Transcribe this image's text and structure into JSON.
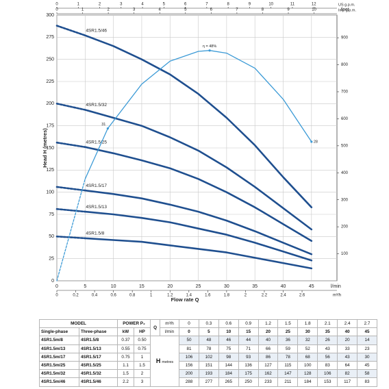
{
  "chart_data": {
    "type": "line",
    "xlabel": "Flow rate Q",
    "xunit": "l/min",
    "ylabel": "Head H (metres)",
    "xlim": [
      0,
      49.5
    ],
    "xticks": [
      0,
      5,
      10,
      15,
      20,
      25,
      30,
      35,
      40,
      45
    ],
    "ylim": [
      0,
      300
    ],
    "yticks": [
      0,
      25,
      50,
      75,
      100,
      125,
      150,
      175,
      200,
      225,
      250,
      275,
      300
    ],
    "grid": true,
    "dashed_first_segment": true,
    "x": [
      0,
      5,
      10,
      15,
      20,
      25,
      30,
      35,
      40,
      45
    ],
    "series": [
      {
        "name": "4SR1.5/46",
        "color": "#1f4f8f",
        "values": [
          288,
          277,
          265,
          250,
          233,
          211,
          184,
          153,
          117,
          83
        ]
      },
      {
        "name": "4SR1.5/32",
        "color": "#1f4f8f",
        "values": [
          200,
          193,
          184,
          175,
          162,
          147,
          128,
          106,
          82,
          58
        ]
      },
      {
        "name": "4SR1.5/25",
        "color": "#1f4f8f",
        "values": [
          156,
          151,
          144,
          136,
          127,
          115,
          100,
          83,
          64,
          45
        ]
      },
      {
        "name": "4SR1.5/17",
        "color": "#1f4f8f",
        "values": [
          106,
          102,
          98,
          93,
          86,
          78,
          68,
          56,
          43,
          30
        ]
      },
      {
        "name": "4SR1.5/13",
        "color": "#1f4f8f",
        "values": [
          81,
          78,
          75,
          71,
          66,
          59,
          52,
          43,
          33,
          23
        ]
      },
      {
        "name": "4SR1.5/8",
        "color": "#1f4f8f",
        "values": [
          50,
          48,
          46,
          44,
          40,
          36,
          32,
          26,
          20,
          14
        ]
      }
    ],
    "efficiency": {
      "color": "#3b9ad6",
      "x": [
        0,
        5,
        9,
        15,
        20,
        25,
        27,
        30,
        35,
        40,
        45
      ],
      "values": [
        0,
        115,
        172,
        222,
        248,
        259,
        260,
        257,
        240,
        205,
        157
      ]
    },
    "annotations": [
      {
        "text": "31",
        "x": 9,
        "y": 172
      },
      {
        "text": "η = 48%",
        "x": 27,
        "y": 260
      },
      {
        "text": "28",
        "x": 45,
        "y": 157
      }
    ],
    "top_axes": [
      {
        "label": "US g.p.m.",
        "xlim": [
          0,
          13.08
        ],
        "xticks": [
          0,
          1,
          2,
          3,
          4,
          5,
          6,
          7,
          8,
          9,
          10,
          11,
          12
        ]
      },
      {
        "label": "Imp g.p.m.",
        "xlim": [
          0,
          10.89
        ],
        "xticks": [
          0,
          1,
          2,
          3,
          4,
          5,
          6,
          7,
          8,
          9,
          10
        ]
      }
    ],
    "bottom_axis2": {
      "label": "m³/h",
      "xlim": [
        0,
        2.97
      ],
      "xticks": [
        0,
        0.2,
        0.4,
        0.6,
        0.8,
        1,
        1.2,
        1.4,
        1.6,
        1.8,
        2,
        2.2,
        2.4,
        2.6
      ]
    },
    "y2label": "feet",
    "y2lim": [
      0,
      984
    ],
    "y2ticks": [
      100,
      200,
      300,
      400,
      500,
      600,
      700,
      800,
      900
    ]
  },
  "table": {
    "model": "MODEL",
    "power": "POWER P₂",
    "q": "Q",
    "q_units": [
      "m³/h",
      "l/min"
    ],
    "q_m3h": [
      "0",
      "0.3",
      "0.6",
      "0.9",
      "1.2",
      "1.5",
      "1.8",
      "2.1",
      "2.4",
      "2.7"
    ],
    "q_lmin": [
      "0",
      "5",
      "10",
      "15",
      "20",
      "25",
      "30",
      "35",
      "40",
      "45"
    ],
    "columns": [
      "Single-phase",
      "Three-phase",
      "kW",
      "HP"
    ],
    "h": "H",
    "h_unit": "metres",
    "rows": [
      {
        "single": "4SR1.5m/8",
        "three": "4SR1.5/8",
        "kw": "0.37",
        "hp": "0.50",
        "h": [
          "50",
          "48",
          "46",
          "44",
          "40",
          "36",
          "32",
          "26",
          "20",
          "14"
        ]
      },
      {
        "single": "4SR1.5m/13",
        "three": "4SR1.5/13",
        "kw": "0.55",
        "hp": "0.75",
        "h": [
          "81",
          "78",
          "75",
          "71",
          "66",
          "59",
          "52",
          "43",
          "33",
          "23"
        ]
      },
      {
        "single": "4SR1.5m/17",
        "three": "4SR1.5/17",
        "kw": "0.75",
        "hp": "1",
        "h": [
          "106",
          "102",
          "98",
          "93",
          "86",
          "78",
          "68",
          "56",
          "43",
          "30"
        ]
      },
      {
        "single": "4SR1.5m/25",
        "three": "4SR1.5/25",
        "kw": "1.1",
        "hp": "1.5",
        "h": [
          "156",
          "151",
          "144",
          "136",
          "127",
          "115",
          "100",
          "83",
          "64",
          "45"
        ]
      },
      {
        "single": "4SR1.5m/32",
        "three": "4SR1.5/32",
        "kw": "1.5",
        "hp": "2",
        "h": [
          "200",
          "193",
          "184",
          "175",
          "162",
          "147",
          "128",
          "106",
          "82",
          "58"
        ]
      },
      {
        "single": "4SR1.5m/46",
        "three": "4SR1.5/46",
        "kw": "2.2",
        "hp": "3",
        "h": [
          "288",
          "277",
          "265",
          "250",
          "233",
          "211",
          "184",
          "153",
          "117",
          "83"
        ]
      }
    ]
  }
}
